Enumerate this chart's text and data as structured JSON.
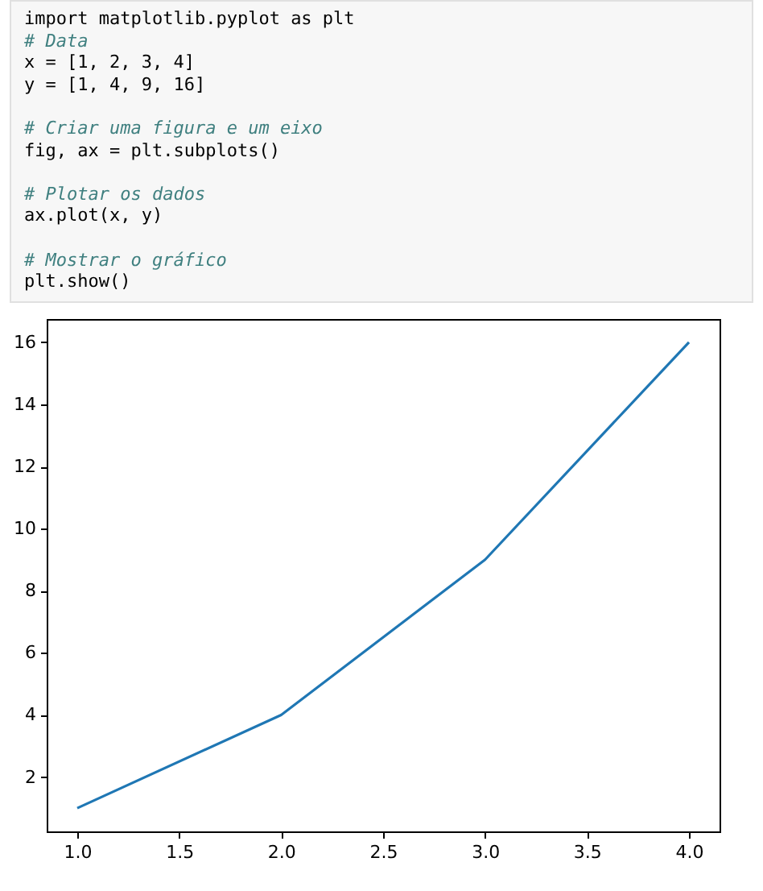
{
  "chart_data": {
    "type": "line",
    "annotations": [
      "import matplotlib.pyplot as plt\n# Data\nx = [1, 2, 3, 4]\ny = [1, 4, 9, 16]\n\n# Criar uma figura e um eixo\nfig, ax = plt.subplots()\n\n# Plotar os dados\nax.plot(x, y)\n\n# Mostrar o gráfico\nplt.show()"
    ],
    "x": [
      1,
      2,
      3,
      4
    ],
    "series": [
      {
        "color": "#1f77b4",
        "values": [
          1,
          4,
          9,
          16
        ]
      }
    ],
    "xlim": [
      0.85,
      4.15
    ],
    "xticks": [
      {
        "value": 1,
        "label": "1.0"
      },
      {
        "value": 1.5,
        "label": "1.5"
      },
      {
        "value": 2,
        "label": "2.0"
      },
      {
        "value": 2.5,
        "label": "2.5"
      },
      {
        "value": 3,
        "label": "3.0"
      },
      {
        "value": 3.5,
        "label": "3.5"
      },
      {
        "value": 4,
        "label": "4.0"
      }
    ],
    "ylim": [
      0.25,
      16.75
    ],
    "yticks": [
      2,
      4,
      6,
      8,
      10,
      12,
      14,
      16
    ],
    "grid": false,
    "marker": "none",
    "line_style": "solid"
  }
}
